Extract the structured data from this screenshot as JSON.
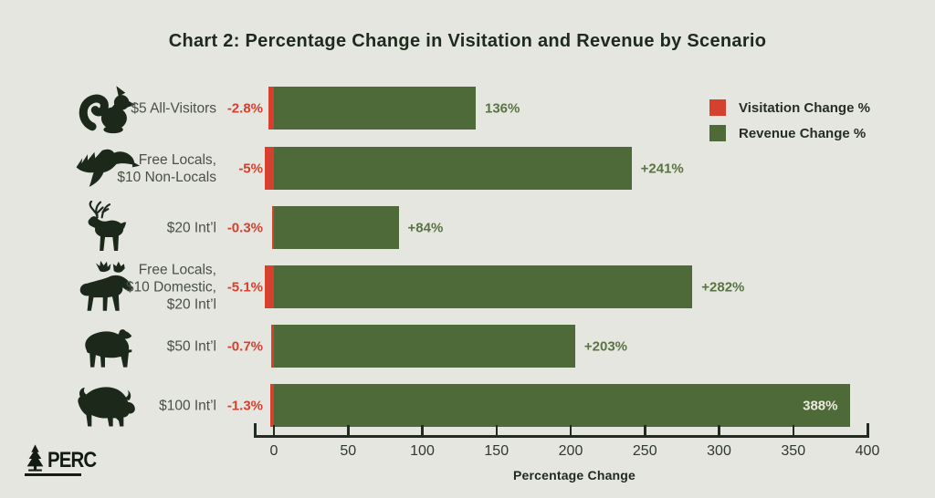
{
  "title": "Chart 2: Percentage Change in Visitation and Revenue by Scenario",
  "legend": {
    "items": [
      {
        "label": "Visitation Change %",
        "color": "#d6402f",
        "icon": "red-swatch"
      },
      {
        "label": "Revenue Change %",
        "color": "#4e6a39",
        "icon": "green-swatch"
      }
    ]
  },
  "footer": {
    "logo_text": "PERC",
    "logo_icon": "pine-tree-icon"
  },
  "colors": {
    "background": "#e5e6df",
    "bar_green": "#4e6a39",
    "bar_red": "#d6402f",
    "title_text": "#1d2a1c",
    "value_green_text": "#5a7345",
    "value_red_text": "#d6402f",
    "category_text": "#495146",
    "inside_bar_label_text": "#ece9dd",
    "icon_silhouette": "#1c291a"
  },
  "chart_data": {
    "type": "bar",
    "orientation": "horizontal",
    "title": "Chart 2: Percentage Change in Visitation and Revenue by Scenario",
    "xlabel": "Percentage Change",
    "x_ticks": [
      0,
      50,
      100,
      150,
      200,
      250,
      300,
      350,
      400
    ],
    "xlim": [
      0,
      400
    ],
    "grid": false,
    "legend_position": "upper right",
    "categories": [
      "$5 All-Visitors",
      "Free Locals, $10 Non-Locals",
      "$20 Int’l",
      "Free Locals, $10 Domestic, $20 Int’l",
      "$50 Int’l",
      "$100 Int’l"
    ],
    "series": [
      {
        "name": "Visitation Change %",
        "values": [
          -2.8,
          -5,
          -0.3,
          -5.1,
          -0.7,
          -1.3
        ]
      },
      {
        "name": "Revenue Change %",
        "values": [
          136,
          241,
          84,
          282,
          203,
          388
        ]
      }
    ],
    "rows": [
      {
        "icon": "squirrel-icon",
        "label_lines": [
          "$5 All-Visitors"
        ],
        "visitation_value": -2.8,
        "visitation_label": "-2.8%",
        "revenue_value": 136,
        "revenue_label": "136%",
        "revenue_label_inside": false
      },
      {
        "icon": "eagle-icon",
        "label_lines": [
          "Free Locals,",
          "$10 Non-Locals"
        ],
        "visitation_value": -5,
        "visitation_label": "-5%",
        "revenue_value": 241,
        "revenue_label": "+241%",
        "revenue_label_inside": false
      },
      {
        "icon": "deer-icon",
        "label_lines": [
          "$20 Int’l"
        ],
        "visitation_value": -0.3,
        "visitation_label": "-0.3%",
        "revenue_value": 84,
        "revenue_label": "+84%",
        "revenue_label_inside": false
      },
      {
        "icon": "moose-icon",
        "label_lines": [
          "Free Locals,",
          "$10 Domestic,",
          "$20 Int’l"
        ],
        "visitation_value": -5.1,
        "visitation_label": "-5.1%",
        "revenue_value": 282,
        "revenue_label": "+282%",
        "revenue_label_inside": false
      },
      {
        "icon": "bear-icon",
        "label_lines": [
          "$50 Int’l"
        ],
        "visitation_value": -0.7,
        "visitation_label": "-0.7%",
        "revenue_value": 203,
        "revenue_label": "+203%",
        "revenue_label_inside": false
      },
      {
        "icon": "bison-icon",
        "label_lines": [
          "$100 Int’l"
        ],
        "visitation_value": -1.3,
        "visitation_label": "-1.3%",
        "revenue_value": 388,
        "revenue_label": "388%",
        "revenue_label_inside": true
      }
    ]
  }
}
